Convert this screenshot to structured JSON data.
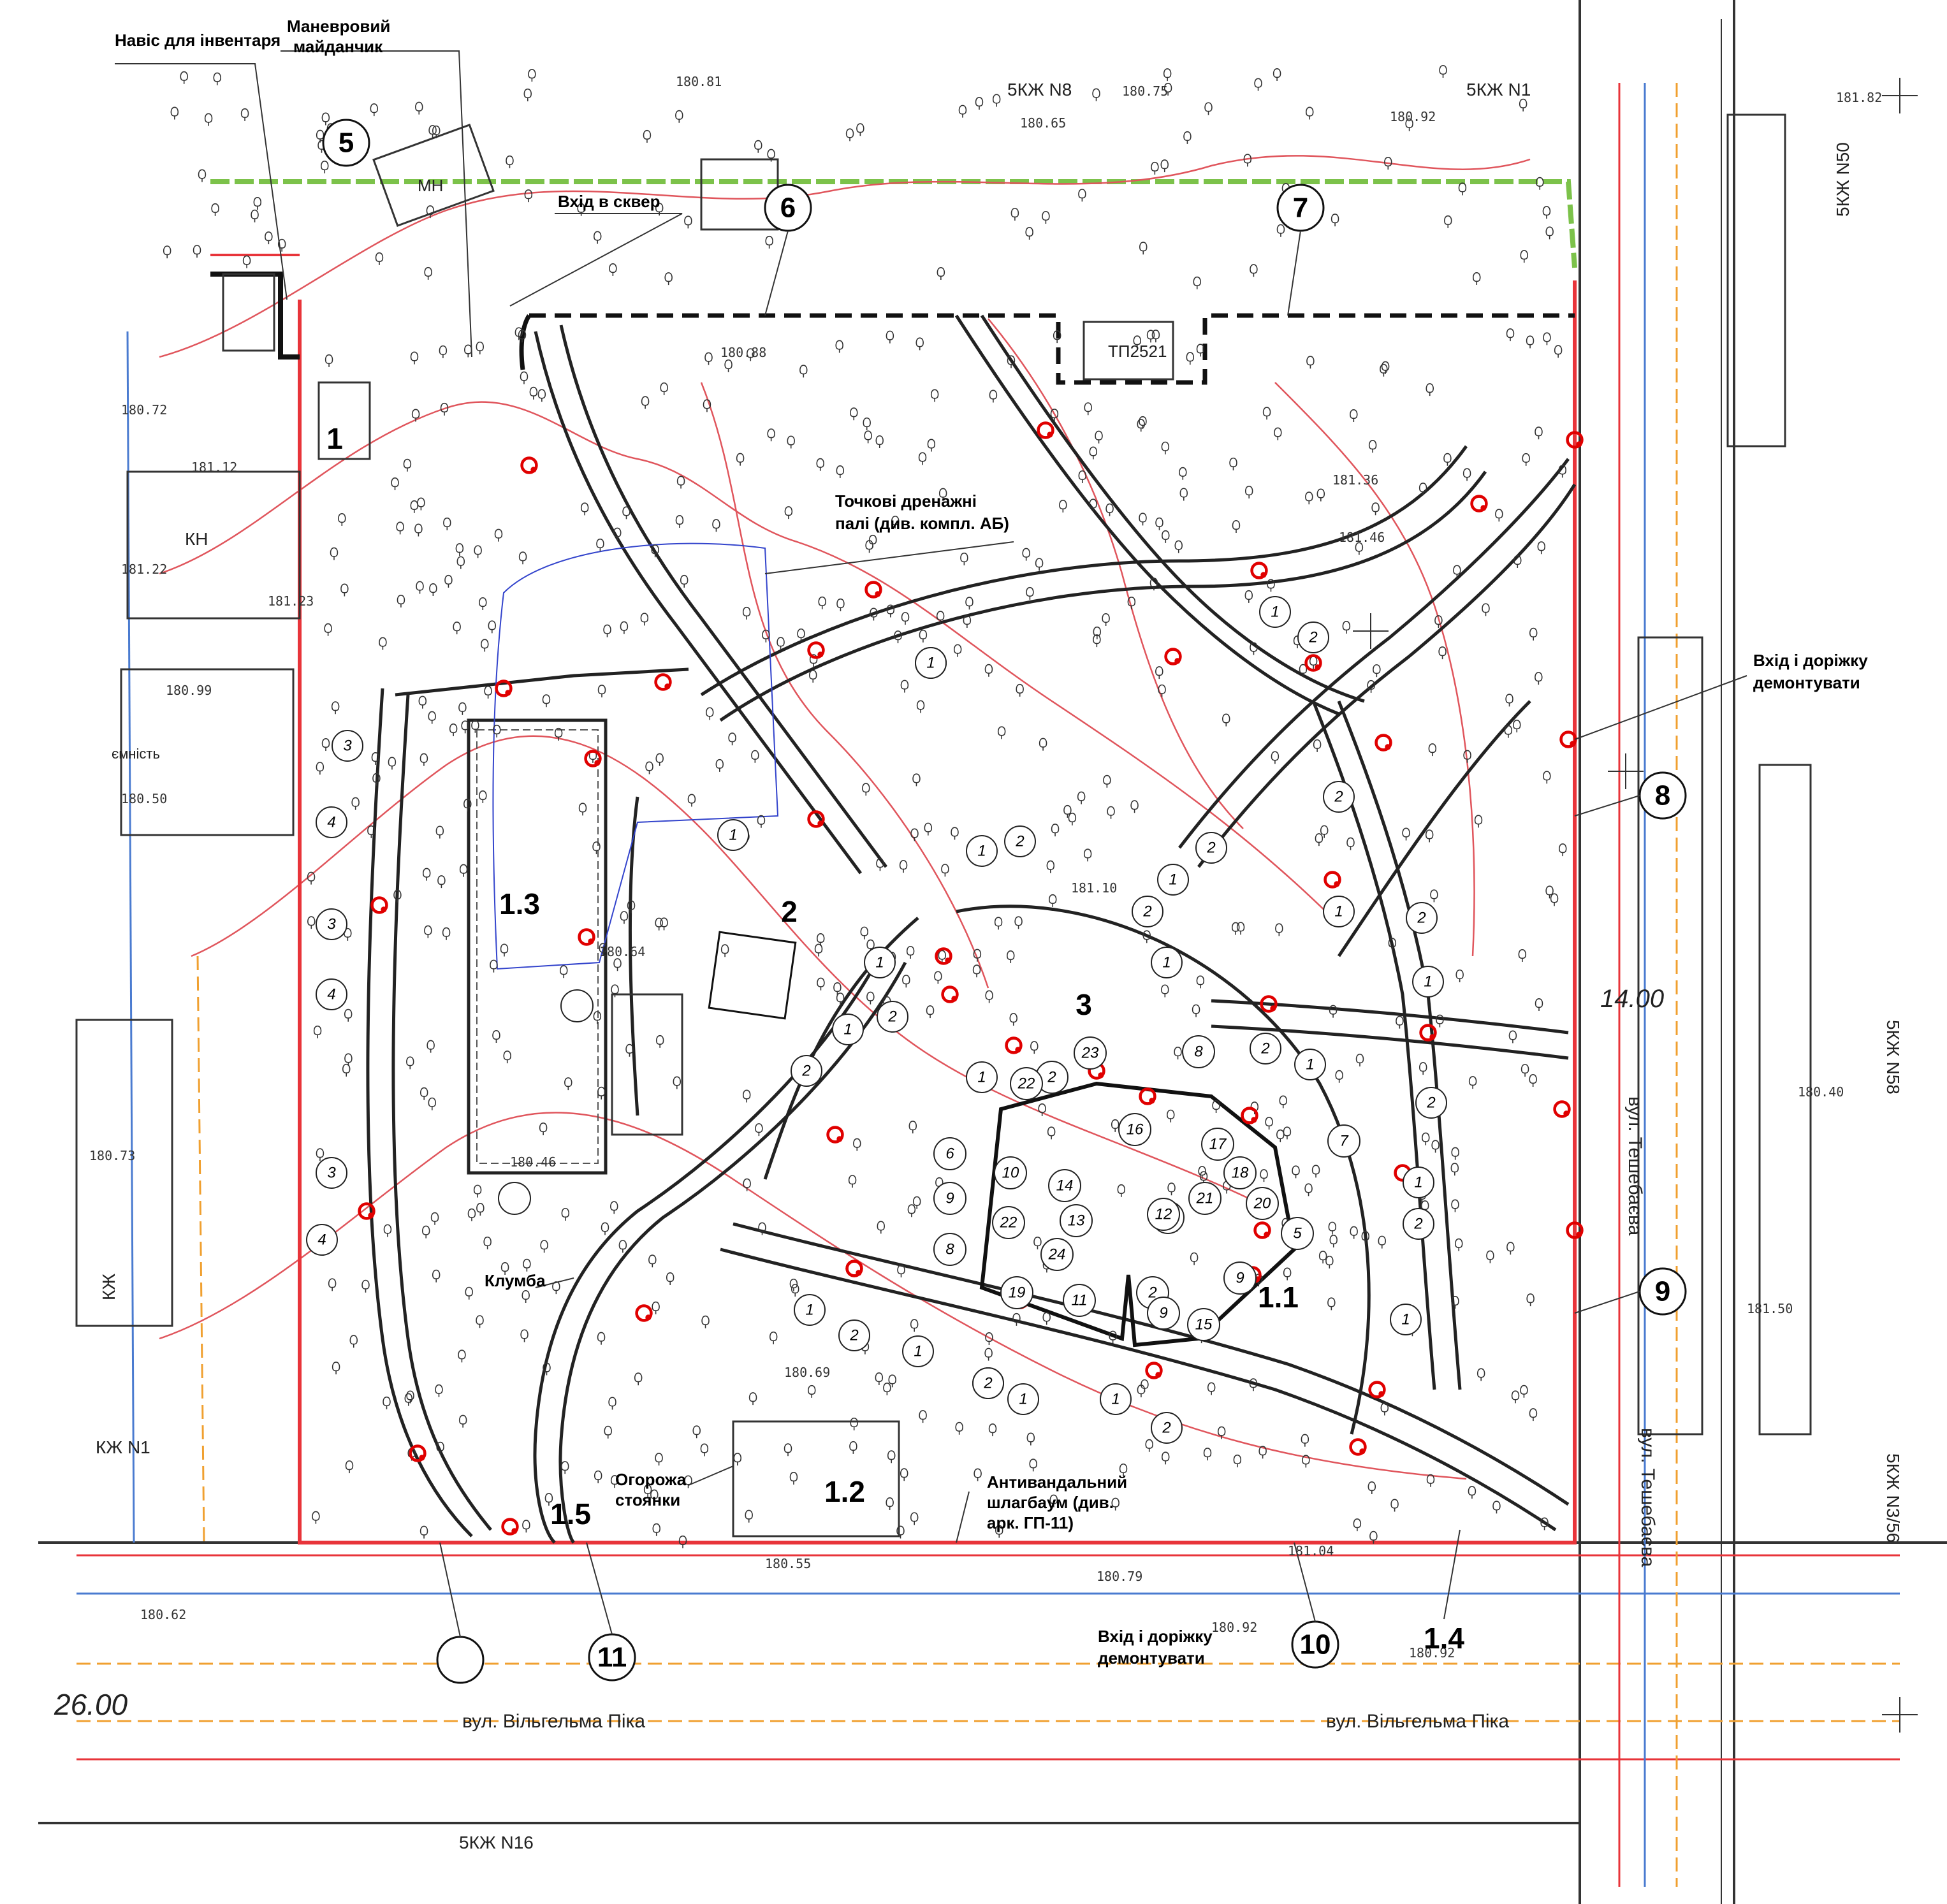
{
  "colors": {
    "boundary": "#e8343a",
    "contour": "#e0555c",
    "path": "#222222",
    "utility_blue": "#4a7bd0",
    "utility_orange": "#f0a030",
    "utility_green": "#7cc24a",
    "lamp": "#e00000",
    "drain_outline": "#3344cc"
  },
  "icons": [
    "tree-icon",
    "lamp-icon",
    "compass-cross-icon"
  ],
  "callouts": {
    "inventory_shed": "Навіс для інвентаря",
    "maneuver_area_line1": "Маневровий",
    "maneuver_area_line2": "майданчик",
    "park_entrance": "Вхід в сквер",
    "drain_piles_line1": "Точкові дренажні",
    "drain_piles_line2": "палі (див. компл. АБ)",
    "remove_east_line1": "Вхід і доріжку",
    "remove_east_line2": "демонтувати",
    "flowerbed": "Клумба",
    "parking_fence_line1": "Огорожа",
    "parking_fence_line2": "стоянки",
    "barrier_line1": "Антивандальний",
    "barrier_line2": "шлагбаум (див.",
    "barrier_line3": "арк. ГП-11)",
    "remove_south_line1": "Вхід і доріжку",
    "remove_south_line2": "демонтувати"
  },
  "zone_labels": [
    "1",
    "1.1",
    "1.2",
    "1.3",
    "1.4",
    "1.5",
    "2",
    "3",
    "4",
    "5",
    "6",
    "7",
    "8",
    "9",
    "10",
    "11"
  ],
  "streets": {
    "south_1": "вул. Вільгельма Піка",
    "south_2": "вул. Вільгельма Піка",
    "east_1": "вул. Тешебаєва",
    "east_2": "вул. Тешебаєва"
  },
  "buildings": {
    "b1": "5КЖ N8",
    "b2": "5КЖ N1",
    "b3": "5КЖ N50",
    "b4": "5КЖ N58",
    "b5": "5КЖ N3/56",
    "b6": "5КЖ N16",
    "b7": "КЖ N1",
    "b8": "ТП2521",
    "b9": "КН",
    "b10": "ємність",
    "b11": "МН",
    "b12": "КЖ"
  },
  "grid_marks": [
    "14.00",
    "26.00"
  ],
  "playground_items": [
    "2",
    "5",
    "6",
    "7",
    "8",
    "9",
    "10",
    "11",
    "12",
    "13",
    "14",
    "15",
    "16",
    "17",
    "18",
    "19",
    "20",
    "21",
    "22",
    "23",
    "24"
  ],
  "small_marks": [
    "1",
    "2",
    "3",
    "4"
  ],
  "elevations": [
    "180.81",
    "180.65",
    "180.75",
    "180.92",
    "181.12",
    "181.22",
    "180.99",
    "181.23",
    "180.72",
    "180.50",
    "181.36",
    "181.46",
    "180.88",
    "181.10",
    "180.46",
    "180.64",
    "180.55",
    "180.69",
    "180.79",
    "180.92",
    "181.04",
    "180.92",
    "180.62",
    "181.50",
    "181.82",
    "180.73",
    "180.40"
  ]
}
